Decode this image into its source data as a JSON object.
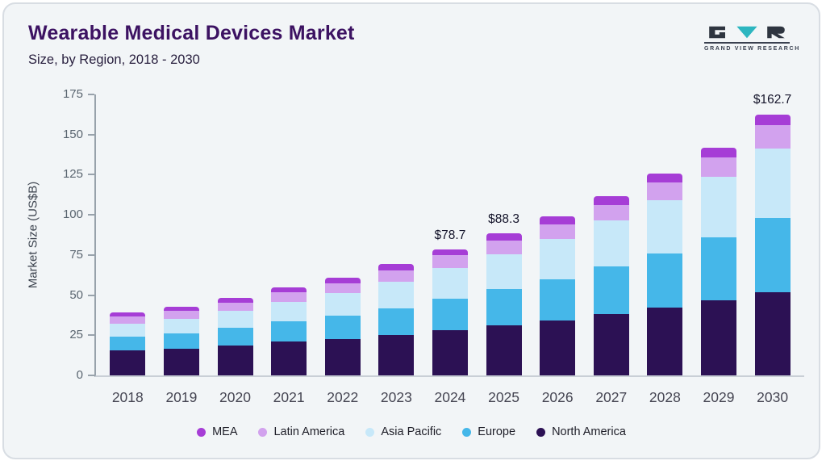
{
  "chart_data": {
    "type": "bar",
    "stacked": true,
    "title": "Wearable Medical Devices Market",
    "subtitle": "Size, by Region, 2018 - 2030",
    "ylabel": "Market Size (US$B)",
    "ylim": [
      0,
      175
    ],
    "yticks": [
      0,
      25,
      50,
      75,
      100,
      125,
      150,
      175
    ],
    "grid": false,
    "legend_position": "bottom",
    "categories": [
      "2018",
      "2019",
      "2020",
      "2021",
      "2022",
      "2023",
      "2024",
      "2025",
      "2026",
      "2027",
      "2028",
      "2029",
      "2030"
    ],
    "series": [
      {
        "name": "North America",
        "color": "#2c1154",
        "values": [
          15.5,
          16.5,
          18.5,
          21,
          22.5,
          25,
          28,
          31,
          34,
          38,
          42,
          47,
          52
        ]
      },
      {
        "name": "Europe",
        "color": "#45b7e9",
        "values": [
          8.5,
          9.5,
          11,
          12.5,
          14.5,
          17,
          20,
          23,
          26,
          30,
          34,
          39,
          46
        ]
      },
      {
        "name": "Asia Pacific",
        "color": "#c7e8f9",
        "values": [
          8,
          9,
          10.5,
          12.5,
          14.5,
          16.5,
          19,
          21.5,
          25,
          28.5,
          33,
          37.5,
          43.5
        ]
      },
      {
        "name": "Latin America",
        "color": "#d2a2ee",
        "values": [
          4.5,
          5,
          5.5,
          6,
          6,
          7,
          7.7,
          8.3,
          9,
          9.5,
          11,
          12.5,
          14.2
        ]
      },
      {
        "name": "MEA",
        "color": "#a63dd6",
        "values": [
          2.5,
          3,
          3,
          3,
          3.5,
          4,
          4,
          4.5,
          5,
          5.5,
          5.5,
          6,
          7
        ]
      }
    ],
    "annotations": [
      {
        "category": "2024",
        "label": "$78.7"
      },
      {
        "category": "2025",
        "label": "$88.3"
      },
      {
        "category": "2030",
        "label": "$162.7"
      }
    ],
    "legend_order": [
      "MEA",
      "Latin America",
      "Asia Pacific",
      "Europe",
      "North America"
    ]
  },
  "logo": {
    "text": "GRAND VIEW RESEARCH"
  }
}
